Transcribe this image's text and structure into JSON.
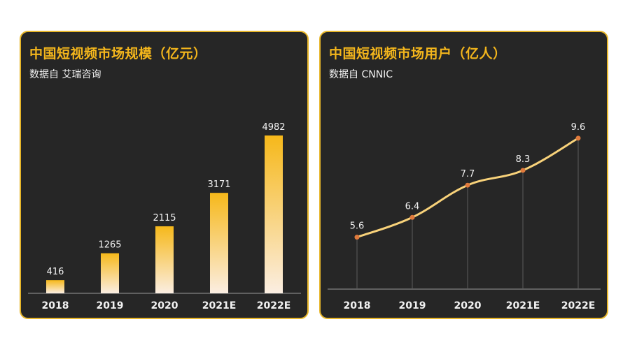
{
  "colors": {
    "panel_bg": "#262626",
    "border": "#e7b62a",
    "title": "#f4b61c",
    "bar_top": "#f6b81a",
    "bar_bottom": "#fbeee2",
    "line": "#f8d27a",
    "marker": "#e07a3c",
    "text": "#f2f2f2"
  },
  "left_panel": {
    "title": "中国短视频市场规模（亿元）",
    "source": "数据自 艾瑞咨询"
  },
  "right_panel": {
    "title": "中国短视频市场用户（亿人）",
    "source": "数据自 CNNIC"
  },
  "chart_data": [
    {
      "type": "bar",
      "title": "中国短视频市场规模（亿元）",
      "categories": [
        "2018",
        "2019",
        "2020",
        "2021E",
        "2022E"
      ],
      "values": [
        416,
        1265,
        2115,
        3171,
        4982
      ],
      "ylim": [
        0,
        5600
      ],
      "xlabel": "",
      "ylabel": "",
      "grid": false
    },
    {
      "type": "line",
      "title": "中国短视频市场用户（亿人）",
      "categories": [
        "2018",
        "2019",
        "2020",
        "2021E",
        "2022E"
      ],
      "values": [
        5.6,
        6.4,
        7.7,
        8.3,
        9.6
      ],
      "ylim": [
        3.5,
        10.5
      ],
      "xlabel": "",
      "ylabel": "",
      "grid": false
    }
  ]
}
